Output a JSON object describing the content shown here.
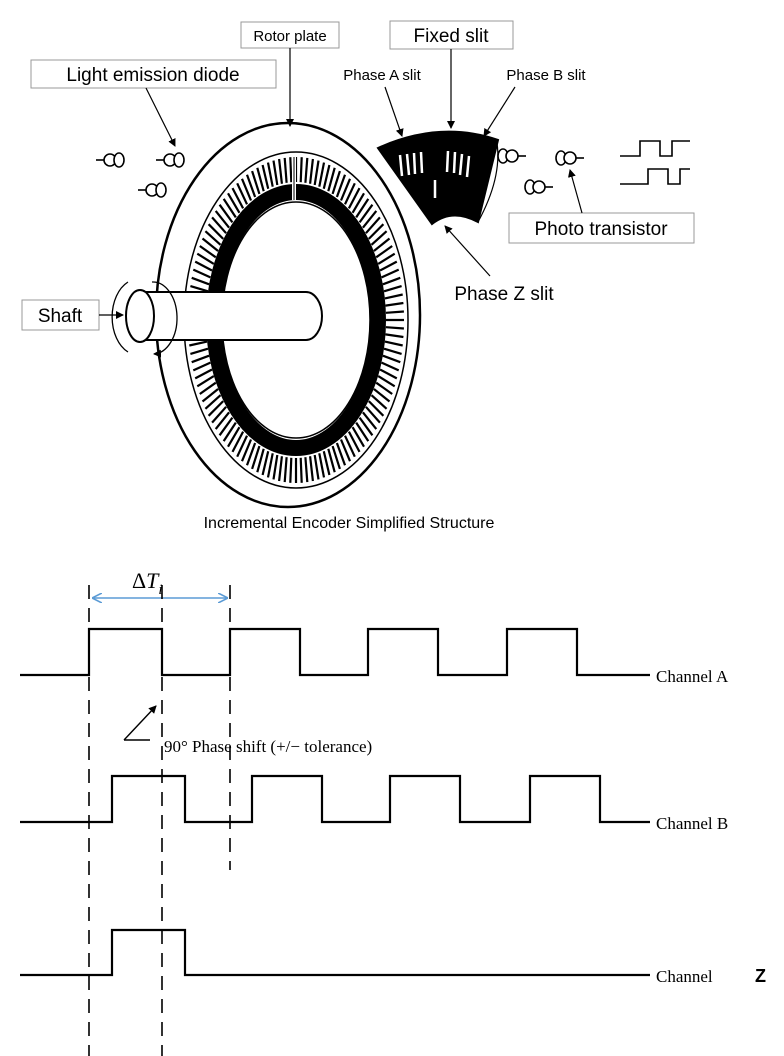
{
  "structure": {
    "caption": "Incremental Encoder Simplified Structure",
    "labels": {
      "rotor_plate": "Rotor plate",
      "fixed_slit": "Fixed slit",
      "light_emission_diode": "Light emission diode",
      "phase_a_slit": "Phase A slit",
      "phase_b_slit": "Phase B slit",
      "photo_transistor": "Photo transistor",
      "phase_z_slit": "Phase Z slit",
      "shaft": "Shaft"
    }
  },
  "timing": {
    "delta_symbol": "Δ",
    "delta_var": "T",
    "delta_sub": "i",
    "phase_shift_note": "90° Phase shift (+/− tolerance)",
    "channels": {
      "a": "Channel A",
      "b": "Channel B",
      "z_word": "Channel",
      "z_letter": "Z"
    }
  },
  "colors": {
    "line": "#000000",
    "arrow_accent": "#5b9bd5"
  }
}
